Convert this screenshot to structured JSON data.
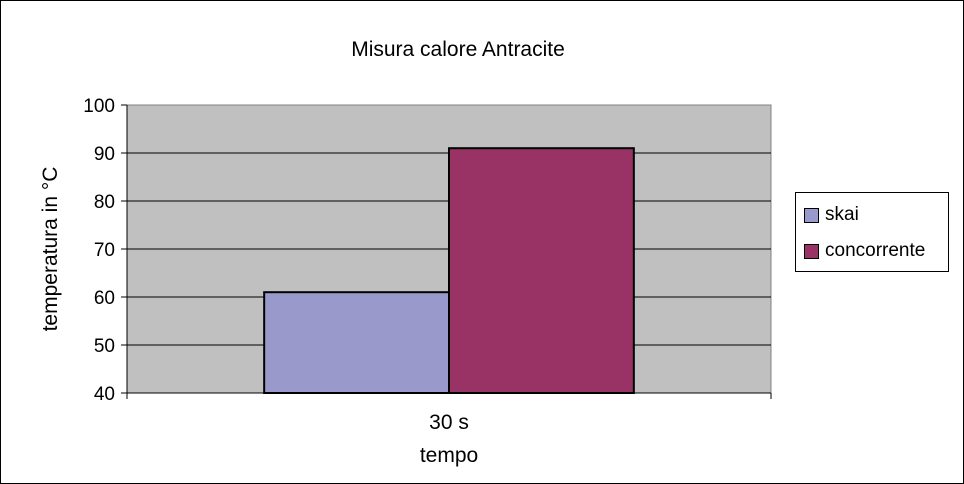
{
  "chart_data": {
    "type": "bar",
    "title": "Misura calore Antracite",
    "xlabel": "tempo",
    "ylabel": "temperatura in °C",
    "categories": [
      "30 s"
    ],
    "series": [
      {
        "name": "skai",
        "values": [
          61
        ],
        "color": "#9999cc"
      },
      {
        "name": "concorrente",
        "values": [
          91
        ],
        "color": "#993366"
      }
    ],
    "ylim": [
      40,
      100
    ],
    "yticks": [
      40,
      50,
      60,
      70,
      80,
      90,
      100
    ],
    "grid": true,
    "legend_position": "right",
    "plot_background": "#c0c0c0"
  }
}
